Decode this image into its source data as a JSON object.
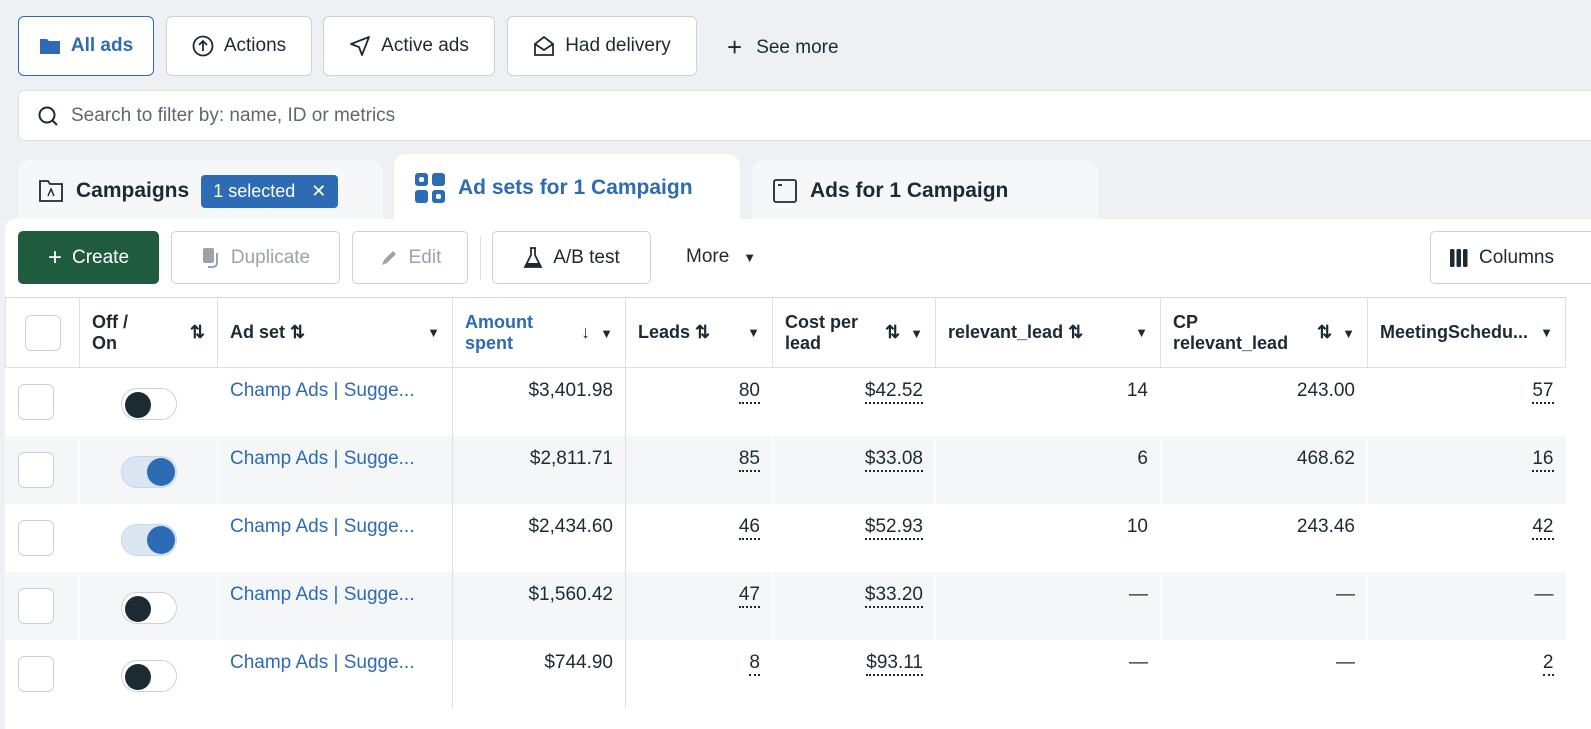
{
  "filters": [
    {
      "label": "All ads",
      "icon": "folder-icon",
      "active": true
    },
    {
      "label": "Actions",
      "icon": "arrow-up-circle-icon"
    },
    {
      "label": "Active ads",
      "icon": "send-icon"
    },
    {
      "label": "Had delivery",
      "icon": "open-envelope-icon"
    }
  ],
  "see_more": "See more",
  "search": {
    "placeholder": "Search to filter by: name, ID or metrics"
  },
  "tabs": {
    "campaigns": "Campaigns",
    "selected_badge": "1 selected",
    "adsets": "Ad sets for 1 Campaign",
    "ads": "Ads for 1 Campaign"
  },
  "toolbar": {
    "create": "Create",
    "duplicate": "Duplicate",
    "edit": "Edit",
    "ab_test": "A/B test",
    "more": "More",
    "columns": "Columns"
  },
  "table": {
    "headers": {
      "toggle": "Off / On",
      "adset": "Ad set",
      "amount": "Amount spent",
      "leads": "Leads",
      "cost": "Cost per lead",
      "relevant": "relevant_lead",
      "cp_relevant": "CP relevant_lead",
      "meeting": "MeetingSchedu..."
    },
    "rows": [
      {
        "on": false,
        "name": "Champ Ads | Sugge...",
        "amount": "$3,401.98",
        "leads": "80",
        "cost": "$42.52",
        "relevant": "14",
        "cp_relevant": "243.00",
        "meeting": "57"
      },
      {
        "on": true,
        "name": "Champ Ads | Sugge...",
        "amount": "$2,811.71",
        "leads": "85",
        "cost": "$33.08",
        "relevant": "6",
        "cp_relevant": "468.62",
        "meeting": "16"
      },
      {
        "on": true,
        "name": "Champ Ads | Sugge...",
        "amount": "$2,434.60",
        "leads": "46",
        "cost": "$52.93",
        "relevant": "10",
        "cp_relevant": "243.46",
        "meeting": "42"
      },
      {
        "on": false,
        "name": "Champ Ads | Sugge...",
        "amount": "$1,560.42",
        "leads": "47",
        "cost": "$33.20",
        "relevant": "—",
        "cp_relevant": "—",
        "meeting": "—"
      },
      {
        "on": false,
        "name": "Champ Ads | Sugge...",
        "amount": "$744.90",
        "leads": "8",
        "cost": "$93.11",
        "relevant": "—",
        "cp_relevant": "—",
        "meeting": "2"
      }
    ]
  },
  "colors": {
    "accent": "#2d6bb5",
    "create": "#1f5c3f"
  }
}
